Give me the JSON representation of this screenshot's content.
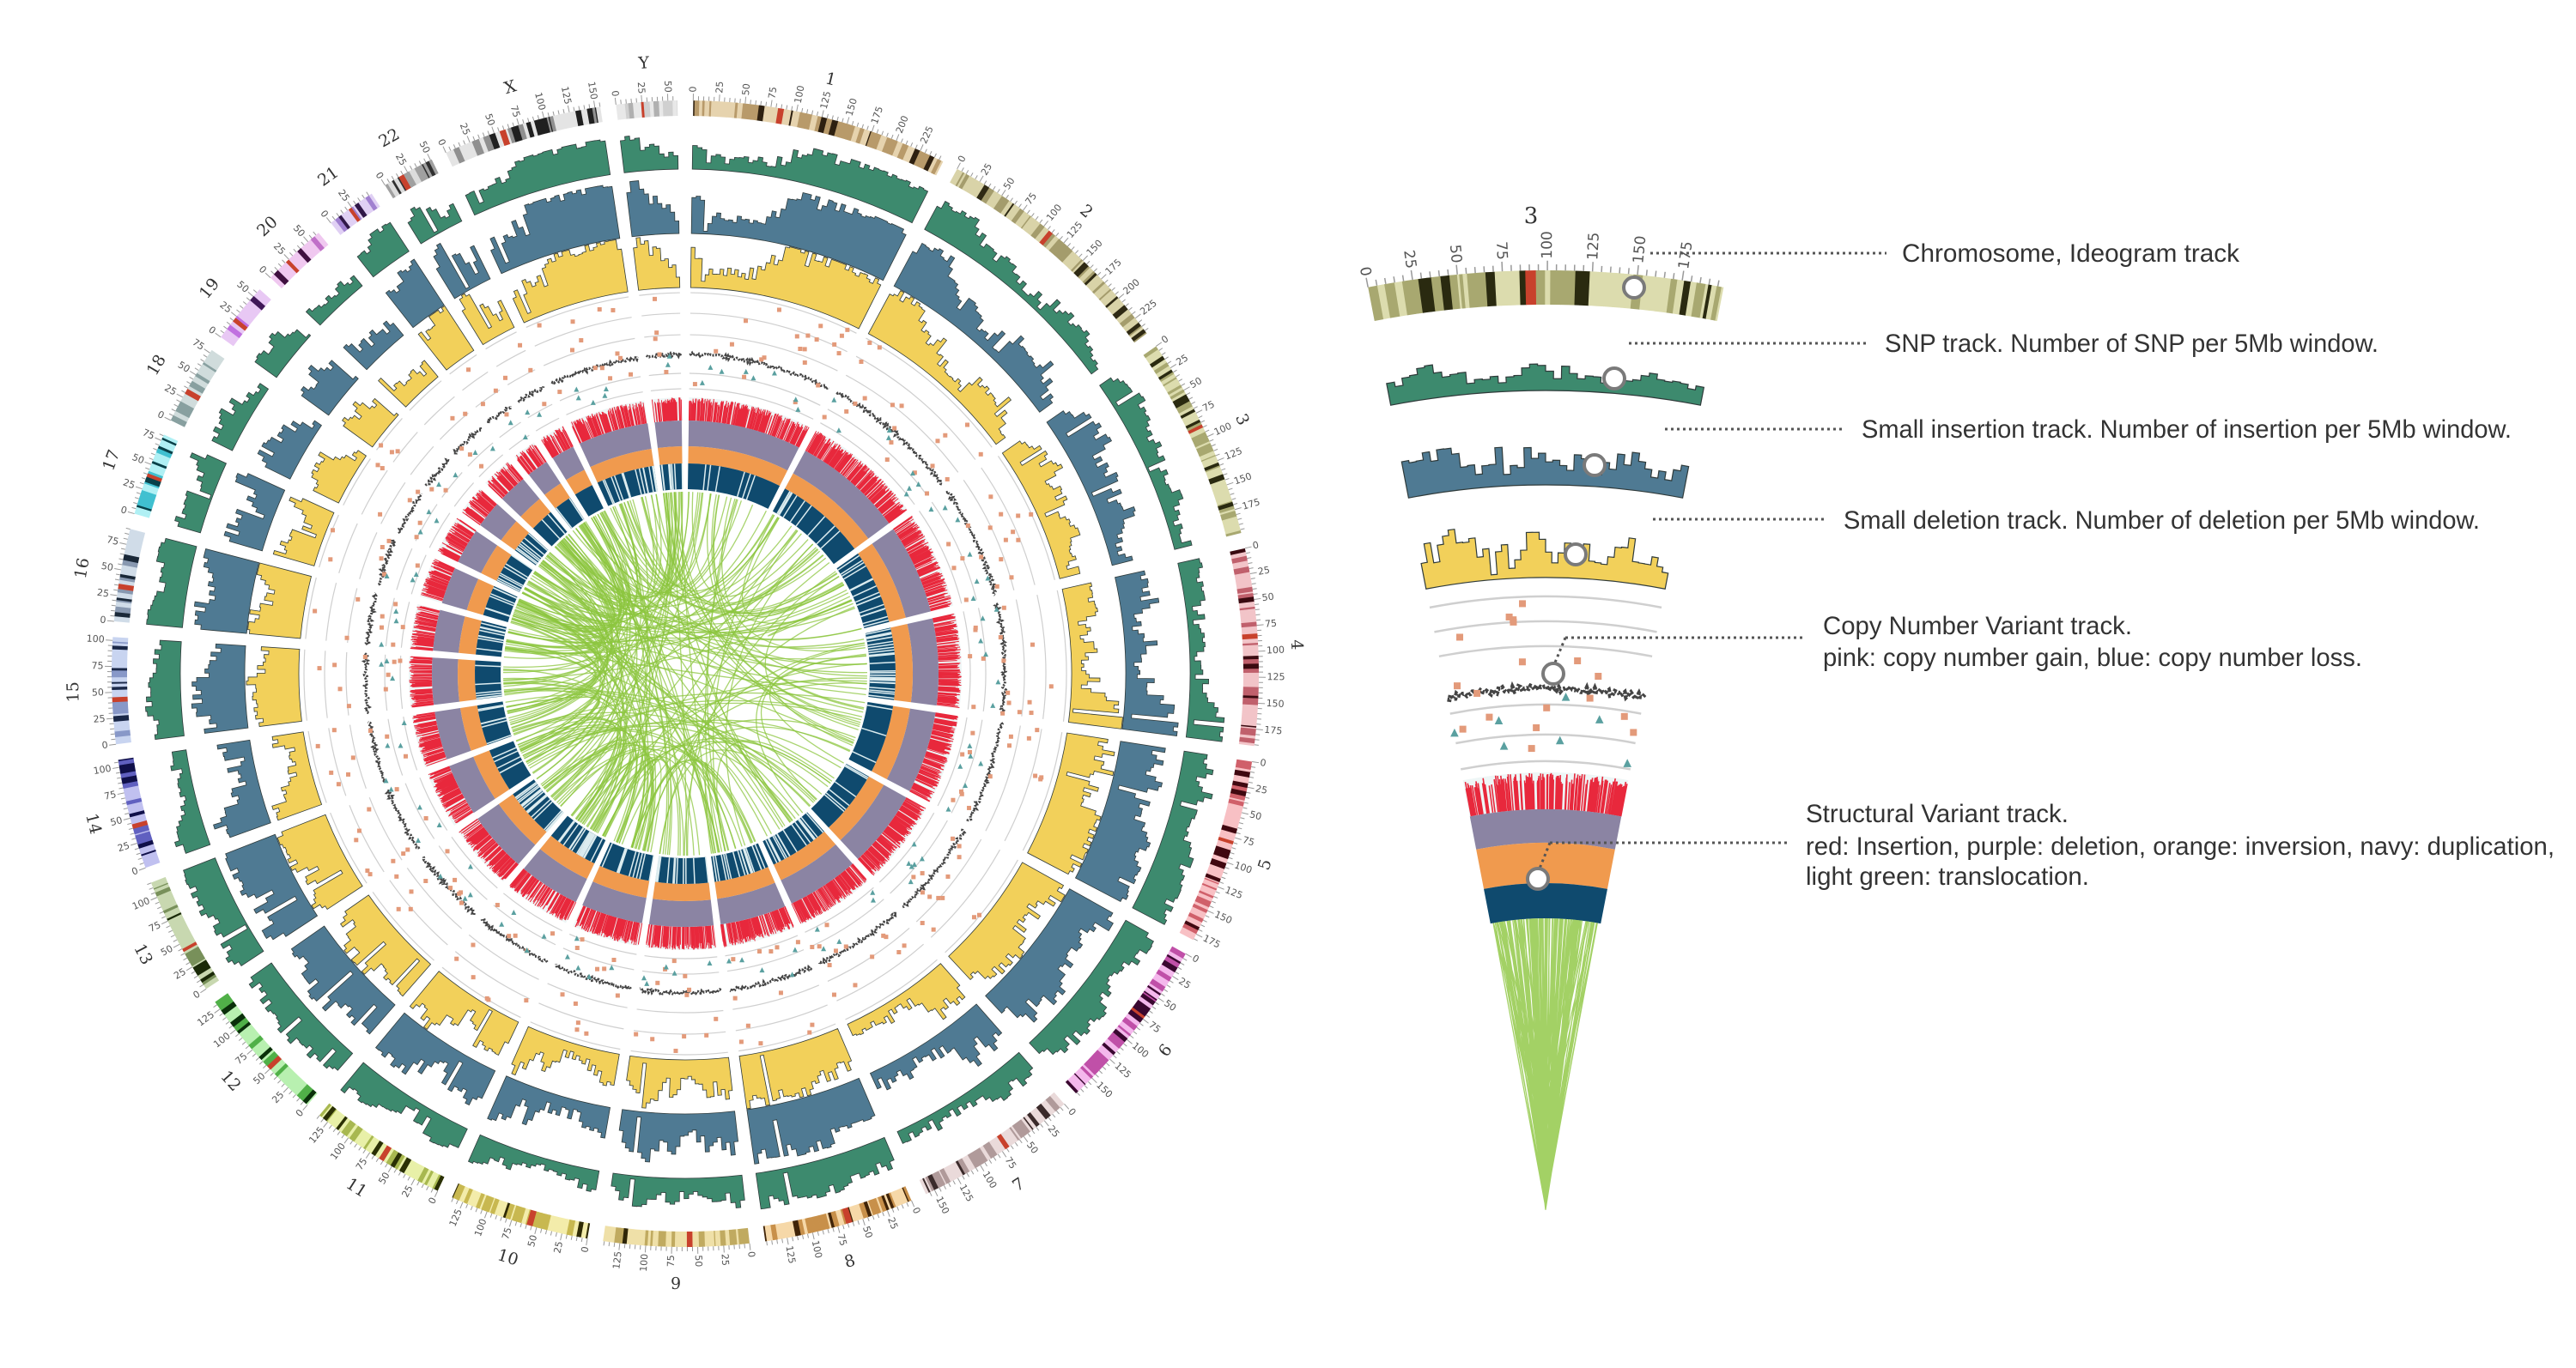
{
  "colors": {
    "snp": "#3d8a6e",
    "insertion": "#4f7a93",
    "deletion": "#f2d05a",
    "cnv_gain": "#e39a7a",
    "cnv_loss": "#5aa0a0",
    "cnv_line": "#444444",
    "sv_insertion": "#e8283c",
    "sv_deletion": "#8b84a3",
    "sv_inversion": "#f09a4e",
    "sv_duplication": "#0f4a6e",
    "sv_translocation": "#8cc63f",
    "centromere": "#c8412c"
  },
  "tick_interval_mb": 25,
  "chromosomes": [
    {
      "name": "1",
      "length_mb": 249,
      "colors": [
        "#e6d3ae",
        "#b89a6a",
        "#2e2010"
      ]
    },
    {
      "name": "2",
      "length_mb": 243,
      "colors": [
        "#d9d3a8",
        "#a49c6c",
        "#2f2a14"
      ]
    },
    {
      "name": "3",
      "length_mb": 198,
      "colors": [
        "#dcdcae",
        "#a8a870",
        "#2a2a10"
      ]
    },
    {
      "name": "4",
      "length_mb": 191,
      "colors": [
        "#f2c4c8",
        "#c0606c",
        "#3a0a10"
      ]
    },
    {
      "name": "5",
      "length_mb": 181,
      "colors": [
        "#f8c0c4",
        "#d0606a",
        "#400810"
      ]
    },
    {
      "name": "6",
      "length_mb": 171,
      "colors": [
        "#f4b8ec",
        "#c050a8",
        "#3a0830"
      ]
    },
    {
      "name": "7",
      "length_mb": 159,
      "colors": [
        "#eadada",
        "#b09a9a",
        "#3a2a2a"
      ]
    },
    {
      "name": "8",
      "length_mb": 146,
      "colors": [
        "#f6d8a8",
        "#c8904a",
        "#402408"
      ]
    },
    {
      "name": "9",
      "length_mb": 141,
      "colors": [
        "#efe0a8",
        "#c0aa60",
        "#2f2608"
      ]
    },
    {
      "name": "10",
      "length_mb": 136,
      "colors": [
        "#f3ecaa",
        "#c8b850",
        "#2f2a04"
      ]
    },
    {
      "name": "11",
      "length_mb": 135,
      "colors": [
        "#e8f0a8",
        "#a8b850",
        "#2a3004"
      ]
    },
    {
      "name": "12",
      "length_mb": 133,
      "colors": [
        "#b8f0b0",
        "#50b048",
        "#0a300a"
      ]
    },
    {
      "name": "13",
      "length_mb": 115,
      "colors": [
        "#c8d8b0",
        "#78905a",
        "#1a2a08"
      ]
    },
    {
      "name": "14",
      "length_mb": 107,
      "colors": [
        "#c0c0f0",
        "#6060c0",
        "#10104a"
      ]
    },
    {
      "name": "15",
      "length_mb": 103,
      "colors": [
        "#c8d4f0",
        "#8898c8",
        "#1a2848"
      ]
    },
    {
      "name": "16",
      "length_mb": 90,
      "colors": [
        "#d0dce8",
        "#8898b0",
        "#1a2838"
      ]
    },
    {
      "name": "17",
      "length_mb": 81,
      "colors": [
        "#b0f0f4",
        "#40c0d0",
        "#084048"
      ]
    },
    {
      "name": "18",
      "length_mb": 78,
      "colors": [
        "#d0dcdc",
        "#88a0a0",
        "#203030"
      ]
    },
    {
      "name": "19",
      "length_mb": 59,
      "colors": [
        "#e8c8f4",
        "#c070e0",
        "#401858"
      ]
    },
    {
      "name": "20",
      "length_mb": 63,
      "colors": [
        "#f0c8f0",
        "#c070c8",
        "#401040"
      ]
    },
    {
      "name": "21",
      "length_mb": 48,
      "colors": [
        "#e0d0f4",
        "#a080d0",
        "#301848"
      ]
    },
    {
      "name": "22",
      "length_mb": 51,
      "colors": [
        "#dcdcdc",
        "#a0a0a0",
        "#303030"
      ]
    },
    {
      "name": "X",
      "length_mb": 155,
      "colors": [
        "#e4e4e4",
        "#909090",
        "#202020"
      ]
    },
    {
      "name": "Y",
      "length_mb": 59,
      "colors": [
        "#e8e8e8",
        "#d0d0d0",
        "#b0b0b0"
      ]
    }
  ],
  "detail": {
    "chromosome": "3",
    "legend": {
      "ideogram": "Chromosome, Ideogram track",
      "snp": "SNP track. Number of SNP per 5Mb window.",
      "insertion": "Small insertion track. Number of insertion per 5Mb window.",
      "deletion": "Small deletion track. Number of deletion per 5Mb window.",
      "cnv_title": "Copy Number Variant track.",
      "cnv_desc": "pink: copy number gain, blue: copy number loss.",
      "sv_title": "Structural Variant track.",
      "sv_desc1": "red: Insertion, purple: deletion, orange: inversion,  navy: duplication,",
      "sv_desc2": "light green: translocation."
    }
  }
}
